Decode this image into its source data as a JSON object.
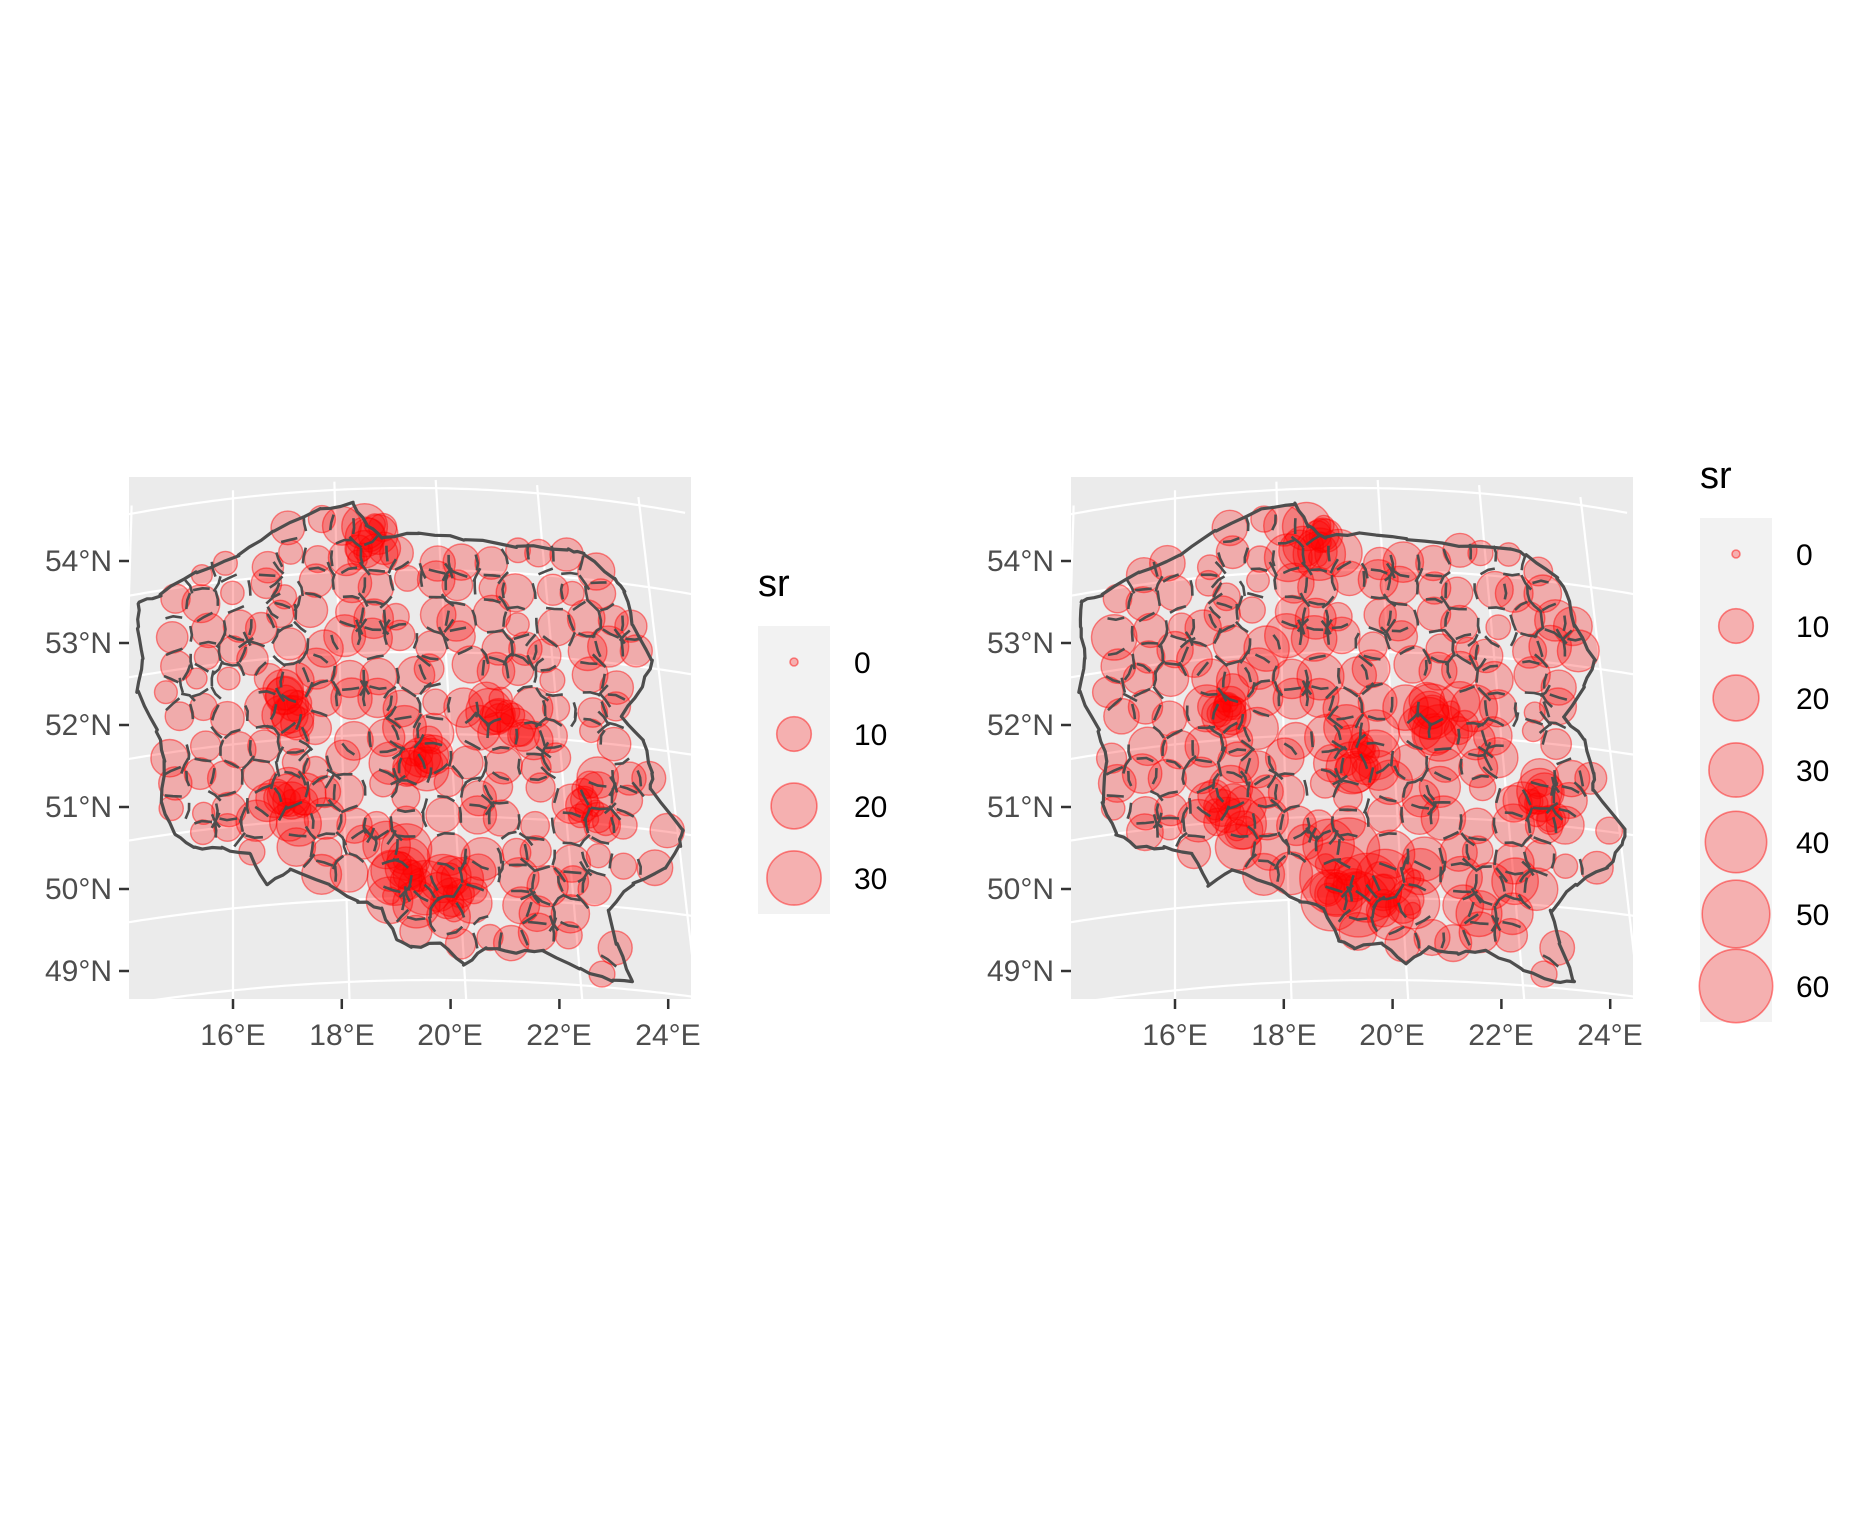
{
  "chart_data": [
    {
      "type": "map",
      "region": "Poland (county boundaries)",
      "marker": "proportional circle",
      "x_ticks": [
        "16°E",
        "18°E",
        "20°E",
        "22°E",
        "24°E"
      ],
      "y_ticks": [
        "54°N",
        "53°N",
        "52°N",
        "51°N",
        "50°N",
        "49°N"
      ],
      "xlim": [
        14.2,
        24.4
      ],
      "ylim": [
        48.8,
        55.0
      ],
      "legend": {
        "title": "sr",
        "position": "right",
        "entries": [
          {
            "label": "0",
            "value": 0
          },
          {
            "label": "10",
            "value": 10
          },
          {
            "label": "20",
            "value": 20
          },
          {
            "label": "30",
            "value": 30
          }
        ]
      }
    },
    {
      "type": "map",
      "region": "Poland (county boundaries)",
      "marker": "proportional circle",
      "x_ticks": [
        "16°E",
        "18°E",
        "20°E",
        "22°E",
        "24°E"
      ],
      "y_ticks": [
        "54°N",
        "53°N",
        "52°N",
        "51°N",
        "50°N",
        "49°N"
      ],
      "xlim": [
        14.2,
        24.4
      ],
      "ylim": [
        48.8,
        55.0
      ],
      "legend": {
        "title": "sr",
        "position": "right",
        "entries": [
          {
            "label": "0",
            "value": 0
          },
          {
            "label": "10",
            "value": 10
          },
          {
            "label": "20",
            "value": 20
          },
          {
            "label": "30",
            "value": 30
          },
          {
            "label": "40",
            "value": 40
          },
          {
            "label": "50",
            "value": 50
          },
          {
            "label": "60",
            "value": 60
          }
        ]
      }
    }
  ],
  "colors": {
    "panel_background": "#ebebeb",
    "gridline": "#ffffff",
    "border": "#4d4d4d",
    "circle_fill": "#ff0000",
    "legend_key_background": "#f2f2f2"
  }
}
